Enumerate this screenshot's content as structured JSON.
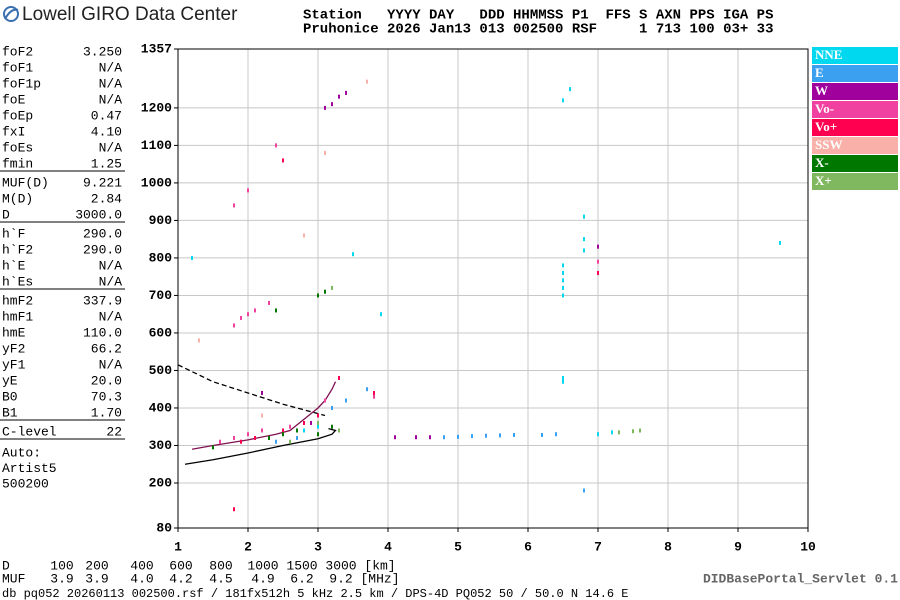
{
  "header": {
    "logo": "Lowell GIRO Data Center",
    "line1": "Station   YYYY DAY   DDD HHMMSS P1  FFS S AXN PPS IGA PS",
    "line2": "Pruhonice 2026 Jan13 013 002500 RSF     1 713 100 03+ 33"
  },
  "parameters": [
    [
      [
        "foF2",
        "3.250"
      ],
      [
        "foF1",
        "N/A"
      ],
      [
        "foF1p",
        "N/A"
      ],
      [
        "foE",
        "N/A"
      ],
      [
        "foEp",
        "0.47"
      ],
      [
        "fxI",
        "4.10"
      ],
      [
        "foEs",
        "N/A"
      ],
      [
        "fmin",
        "1.25"
      ]
    ],
    [
      [
        "MUF(D)",
        "9.221"
      ],
      [
        "M(D)",
        "2.84"
      ],
      [
        "D",
        "3000.0"
      ]
    ],
    [
      [
        "h`F",
        "290.0"
      ],
      [
        "h`F2",
        "290.0"
      ],
      [
        "h`E",
        "N/A"
      ],
      [
        "h`Es",
        "N/A"
      ]
    ],
    [
      [
        "hmF2",
        "337.9"
      ],
      [
        "hmF1",
        "N/A"
      ],
      [
        "hmE",
        "110.0"
      ],
      [
        "yF2",
        "66.2"
      ],
      [
        "yF1",
        "N/A"
      ],
      [
        "yE",
        "20.0"
      ],
      [
        "B0",
        "70.3"
      ],
      [
        "B1",
        "1.70"
      ]
    ],
    [
      [
        "C-level",
        "22"
      ]
    ]
  ],
  "auto": [
    "Auto:",
    "Artist5",
    "500200"
  ],
  "muf_table": {
    "rows": [
      [
        "D",
        "100",
        "200",
        "400",
        "600",
        "800",
        "1000",
        "1500",
        "3000",
        "[km]"
      ],
      [
        "MUF",
        "3.9",
        "3.9",
        "4.0",
        "4.2",
        "4.5",
        "4.9",
        "6.2",
        "9.2",
        "[MHz]"
      ]
    ]
  },
  "footer": {
    "servlet": "DIDBasePortal_Servlet 0.1",
    "info": "db pq052 20260113 002500.rsf / 181fx512h 5 kHz 2.5 km / DPS-4D PQ052 50 / 50.0 N 14.6 E"
  },
  "chart_data": {
    "type": "scatter",
    "xlim": [
      1,
      10
    ],
    "xticks": [
      1,
      2,
      3,
      4,
      5,
      6,
      7,
      8,
      9,
      10
    ],
    "ylim": [
      80,
      1357
    ],
    "yticks": [
      80,
      200,
      300,
      400,
      500,
      600,
      700,
      800,
      900,
      1000,
      1100,
      1200,
      1357
    ],
    "grid": true,
    "series": [
      {
        "name": "NNE",
        "color": "#00d8f0",
        "x": [
          6.5,
          6.5,
          6.5,
          6.5,
          6.5,
          6.5,
          6.5,
          6.5,
          6.6,
          6.8,
          6.8,
          6.8,
          3.9,
          3.5,
          2.8,
          3.0,
          1.2,
          9.6,
          7.0,
          7.2
        ],
        "values": [
          780,
          760,
          740,
          720,
          700,
          480,
          470,
          1220,
          1250,
          910,
          850,
          820,
          650,
          810,
          340,
          350,
          800,
          840,
          330,
          335
        ]
      },
      {
        "name": "E",
        "color": "#3ca0f0",
        "x": [
          4.8,
          5.0,
          5.2,
          5.4,
          5.6,
          5.8,
          6.2,
          6.4,
          3.0,
          3.2,
          3.4,
          3.7,
          2.4,
          2.7,
          6.8
        ],
        "values": [
          322,
          323,
          325,
          326,
          327,
          328,
          328,
          330,
          380,
          400,
          420,
          450,
          310,
          320,
          180
        ]
      },
      {
        "name": "W",
        "color": "#a0009c",
        "x": [
          3.2,
          3.3,
          3.4,
          3.1,
          2.2,
          2.9,
          4.1,
          4.4,
          4.6,
          7.0
        ],
        "values": [
          1210,
          1230,
          1240,
          1200,
          440,
          360,
          322,
          322,
          322,
          830
        ]
      },
      {
        "name": "Vo-",
        "color": "#f040a0",
        "x": [
          1.8,
          1.9,
          2.0,
          2.1,
          2.3,
          1.8,
          2.0,
          2.4,
          1.6,
          1.8,
          2.0,
          2.2,
          2.6,
          3.1,
          3.8,
          7.0
        ],
        "values": [
          620,
          640,
          650,
          660,
          680,
          940,
          980,
          1100,
          310,
          320,
          330,
          340,
          350,
          420,
          430,
          790
        ]
      },
      {
        "name": "Vo+",
        "color": "#ff0050",
        "x": [
          1.9,
          2.1,
          2.5,
          2.8,
          3.0,
          3.3,
          3.8,
          1.8,
          7.0,
          2.5
        ],
        "values": [
          310,
          320,
          340,
          360,
          380,
          480,
          440,
          130,
          760,
          1060
        ]
      },
      {
        "name": "SSW",
        "color": "#f8b0a8",
        "x": [
          1.3,
          2.8,
          3.1,
          3.7,
          2.2
        ],
        "values": [
          580,
          860,
          1080,
          1270,
          380
        ]
      },
      {
        "name": "X-",
        "color": "#007800",
        "x": [
          2.4,
          3.0,
          3.1,
          2.7,
          3.0,
          3.2,
          2.3,
          2.5,
          1.5
        ],
        "values": [
          660,
          700,
          710,
          340,
          330,
          350,
          320,
          330,
          295
        ]
      },
      {
        "name": "X+",
        "color": "#80b860",
        "x": [
          3.2,
          3.0,
          3.3,
          2.6,
          7.3,
          7.5,
          7.6
        ],
        "values": [
          720,
          360,
          340,
          310,
          335,
          338,
          340
        ]
      }
    ],
    "curves": [
      {
        "color": "#000000",
        "dash": false,
        "x": [
          1.1,
          1.5,
          2.0,
          2.5,
          3.0,
          3.2,
          3.25,
          3.15
        ],
        "values": [
          250,
          262,
          280,
          300,
          318,
          330,
          340,
          345
        ]
      },
      {
        "color": "#000000",
        "dash": true,
        "x": [
          1.0,
          1.5,
          2.0,
          2.5,
          2.8,
          3.1
        ],
        "values": [
          515,
          470,
          440,
          410,
          395,
          380
        ]
      },
      {
        "color": "#801050",
        "dash": false,
        "x": [
          1.2,
          1.5,
          2.0,
          2.4,
          2.6,
          2.8,
          3.0,
          3.1,
          3.2,
          3.25
        ],
        "values": [
          290,
          300,
          315,
          330,
          340,
          370,
          400,
          420,
          450,
          470
        ]
      }
    ]
  }
}
